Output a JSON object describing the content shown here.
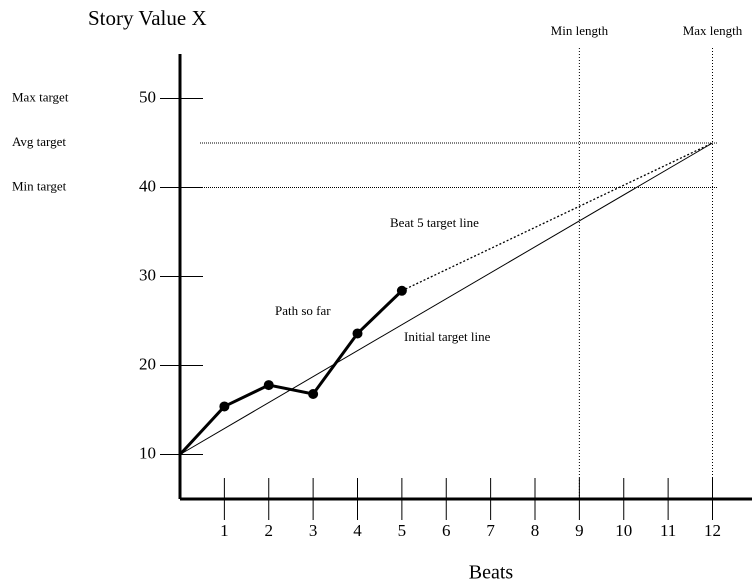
{
  "chart_data": {
    "type": "line",
    "title": "Story Value X",
    "x_label": "Beats",
    "xlim": [
      0,
      12.8
    ],
    "ylim": [
      5,
      55
    ],
    "xticks": [
      1,
      2,
      3,
      4,
      5,
      6,
      7,
      8,
      9,
      10,
      11,
      12
    ],
    "yticks": [
      10,
      20,
      30,
      40,
      50
    ],
    "series": [
      {
        "name": "Path so far",
        "color": "#000000",
        "style": "solid-bold",
        "markers": true,
        "x": [
          0,
          1,
          2,
          3,
          4,
          5
        ],
        "values": [
          10,
          15.4,
          17.8,
          16.8,
          23.6,
          28.4
        ]
      },
      {
        "name": "Initial target line",
        "color": "#000000",
        "style": "solid",
        "markers": false,
        "x": [
          0,
          12
        ],
        "values": [
          10,
          45
        ]
      },
      {
        "name": "Beat 5 target line",
        "color": "#000000",
        "style": "dotted",
        "markers": false,
        "x": [
          5,
          12
        ],
        "values": [
          28.4,
          45
        ]
      }
    ],
    "hlines": [
      {
        "label": "Max target",
        "value": 50,
        "drawn": false
      },
      {
        "label": "Avg target",
        "value": 45,
        "drawn": true
      },
      {
        "label": "Min target",
        "value": 40,
        "drawn": true
      }
    ],
    "vlines": [
      {
        "label": "Min length",
        "value": 9
      },
      {
        "label": "Max length",
        "value": 12
      }
    ]
  }
}
